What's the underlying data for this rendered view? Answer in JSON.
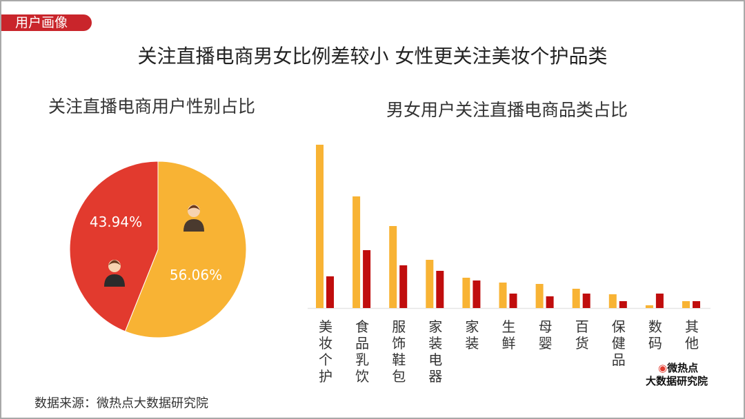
{
  "tag": "用户画像",
  "title": "关注直播电商男女比例差较小 女性更关注美妆个护品类",
  "source": "数据来源：微热点大数据研究院",
  "logo": {
    "line1": "微热点",
    "line2": "大数据研究院"
  },
  "chart_data": [
    {
      "type": "pie",
      "title": "关注直播电商用户性别占比",
      "slices": [
        {
          "label": "female",
          "icon": "female-user-icon",
          "value": 56.06,
          "label_text": "56.06%",
          "color": "#f8b334"
        },
        {
          "label": "male",
          "icon": "male-user-icon",
          "value": 43.94,
          "label_text": "43.94%",
          "color": "#e23a2e"
        }
      ]
    },
    {
      "type": "bar",
      "title": "男女用户关注直播电商品类占比",
      "categories": [
        "美妆个护",
        "食品乳饮",
        "服饰鞋包",
        "家装电器",
        "家装",
        "生鲜",
        "母婴",
        "百货",
        "保健品",
        "数码",
        "其他"
      ],
      "series": [
        {
          "key": "female",
          "color": "#f8b334",
          "values": [
            237,
            162,
            119,
            70,
            44,
            37,
            35,
            28,
            20,
            4,
            10
          ]
        },
        {
          "key": "male",
          "color": "#c00d0d",
          "values": [
            46,
            84,
            62,
            54,
            40,
            21,
            17,
            21,
            10,
            21,
            10
          ]
        }
      ],
      "ylim": [
        0,
        240
      ],
      "axis_values_shown": false,
      "grid": false
    }
  ]
}
